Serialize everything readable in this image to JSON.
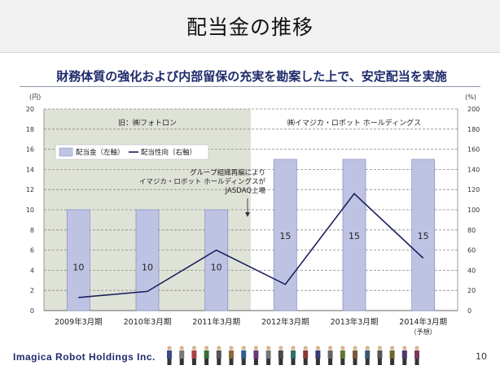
{
  "page": {
    "title": "配当金の推移",
    "subtitle": "財務体質の強化および内部留保の充実を勘案した上で、安定配当を実施",
    "page_number": "10"
  },
  "footer": {
    "company": "Imagica Robot Holdings Inc."
  },
  "colors": {
    "bar": "#bfc3e3",
    "bar_border": "#8e93c2",
    "line": "#1b1f5e",
    "old_period_bg": "#dfe3d7"
  },
  "chart_data": {
    "type": "bar",
    "categories": [
      "2009年3月期",
      "2010年3月期",
      "2011年3月期",
      "2012年3月期",
      "2013年3月期",
      "2014年3月期"
    ],
    "category_notes": [
      "",
      "",
      "",
      "",
      "",
      "（予想）"
    ],
    "series": [
      {
        "name": "配当金（左軸）",
        "type": "bar",
        "axis": "left",
        "values": [
          10,
          10,
          10,
          15,
          15,
          15
        ]
      },
      {
        "name": "配当性向（右軸）",
        "type": "line",
        "axis": "right",
        "values": [
          13,
          19,
          60,
          26,
          116,
          52
        ]
      }
    ],
    "y_left": {
      "unit": "(円)",
      "lim": [
        0,
        20
      ],
      "ticks": [
        "0",
        "2",
        "4",
        "6",
        "8",
        "10",
        "12",
        "14",
        "16",
        "18",
        "20"
      ]
    },
    "y_right": {
      "unit": "(%)",
      "lim": [
        0,
        200
      ],
      "ticks": [
        "0",
        "20",
        "40",
        "60",
        "80",
        "100",
        "120",
        "140",
        "160",
        "180",
        "200"
      ]
    },
    "periods": [
      {
        "label": "旧：㈱フォトロン",
        "from_category": 0,
        "to_category": 2
      },
      {
        "label": "㈱イマジカ・ロボット ホールディングス",
        "from_category": 3,
        "to_category": 5
      }
    ],
    "annotation": {
      "lines": [
        "グループ組織再編により",
        "イマジカ・ロボット ホールディングスが",
        "JASDAQ上場"
      ]
    },
    "grid": true,
    "legend_position": "top-left"
  }
}
